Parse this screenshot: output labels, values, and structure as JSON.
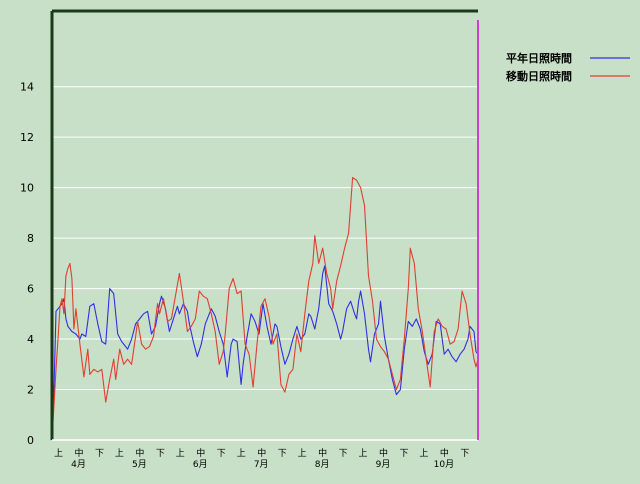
{
  "chart_data": {
    "type": "line",
    "y_ticks": [
      "0",
      "2",
      "4",
      "6",
      "8",
      "10",
      "12",
      "14"
    ],
    "ylim": [
      0,
      17
    ],
    "grid": true,
    "legend_position": "top-right",
    "period_labels": [
      "上",
      "中",
      "下"
    ],
    "month_labels": [
      "4月",
      "5月",
      "6月",
      "7月",
      "8月",
      "9月",
      "10月"
    ],
    "x_count": 214,
    "series": [
      {
        "name": "平年日照時間",
        "color": "#3030e0",
        "points": [
          [
            0,
            0
          ],
          [
            1,
            2
          ],
          [
            2,
            5.1
          ],
          [
            3,
            5.2
          ],
          [
            5,
            5.4
          ],
          [
            6,
            5.6
          ],
          [
            7,
            4.8
          ],
          [
            8,
            4.5
          ],
          [
            10,
            4.3
          ],
          [
            12,
            4.2
          ],
          [
            14,
            4.0
          ],
          [
            15,
            4.2
          ],
          [
            17,
            4.1
          ],
          [
            19,
            5.3
          ],
          [
            21,
            5.4
          ],
          [
            23,
            4.6
          ],
          [
            25,
            3.9
          ],
          [
            27,
            3.8
          ],
          [
            29,
            6.0
          ],
          [
            31,
            5.8
          ],
          [
            33,
            4.2
          ],
          [
            35,
            3.9
          ],
          [
            37,
            3.7
          ],
          [
            38,
            3.6
          ],
          [
            40,
            4.0
          ],
          [
            42,
            4.6
          ],
          [
            44,
            4.8
          ],
          [
            46,
            5.0
          ],
          [
            48,
            5.1
          ],
          [
            50,
            4.2
          ],
          [
            52,
            4.5
          ],
          [
            54,
            5.4
          ],
          [
            55,
            5.7
          ],
          [
            57,
            5.2
          ],
          [
            59,
            4.3
          ],
          [
            61,
            4.8
          ],
          [
            63,
            5.3
          ],
          [
            64,
            5.0
          ],
          [
            66,
            5.4
          ],
          [
            68,
            5.1
          ],
          [
            69,
            4.6
          ],
          [
            71,
            3.9
          ],
          [
            73,
            3.3
          ],
          [
            75,
            3.8
          ],
          [
            77,
            4.6
          ],
          [
            79,
            5.0
          ],
          [
            80,
            5.2
          ],
          [
            82,
            4.9
          ],
          [
            84,
            4.3
          ],
          [
            86,
            3.8
          ],
          [
            88,
            2.5
          ],
          [
            90,
            3.8
          ],
          [
            91,
            4.0
          ],
          [
            93,
            3.9
          ],
          [
            95,
            2.2
          ],
          [
            96,
            3.0
          ],
          [
            98,
            4.1
          ],
          [
            100,
            5.0
          ],
          [
            102,
            4.7
          ],
          [
            104,
            4.2
          ],
          [
            106,
            5.4
          ],
          [
            108,
            4.5
          ],
          [
            110,
            3.8
          ],
          [
            112,
            4.6
          ],
          [
            113,
            4.5
          ],
          [
            115,
            3.7
          ],
          [
            117,
            3.0
          ],
          [
            119,
            3.4
          ],
          [
            121,
            4.0
          ],
          [
            123,
            4.5
          ],
          [
            125,
            4.0
          ],
          [
            127,
            4.2
          ],
          [
            129,
            5.0
          ],
          [
            130,
            4.9
          ],
          [
            132,
            4.4
          ],
          [
            134,
            5.2
          ],
          [
            136,
            6.6
          ],
          [
            137,
            6.9
          ],
          [
            139,
            5.4
          ],
          [
            141,
            5.1
          ],
          [
            143,
            4.6
          ],
          [
            145,
            4.0
          ],
          [
            146,
            4.3
          ],
          [
            148,
            5.2
          ],
          [
            150,
            5.5
          ],
          [
            152,
            5.0
          ],
          [
            153,
            4.8
          ],
          [
            154,
            5.5
          ],
          [
            155,
            5.9
          ],
          [
            157,
            5.0
          ],
          [
            159,
            3.6
          ],
          [
            160,
            3.1
          ],
          [
            162,
            4.2
          ],
          [
            164,
            4.6
          ],
          [
            165,
            5.5
          ],
          [
            167,
            4.1
          ],
          [
            169,
            3.2
          ],
          [
            171,
            2.4
          ],
          [
            173,
            1.8
          ],
          [
            175,
            2.0
          ],
          [
            177,
            3.6
          ],
          [
            179,
            4.7
          ],
          [
            181,
            4.5
          ],
          [
            183,
            4.8
          ],
          [
            185,
            4.4
          ],
          [
            187,
            3.5
          ],
          [
            189,
            3.0
          ],
          [
            191,
            3.4
          ],
          [
            193,
            4.7
          ],
          [
            195,
            4.6
          ],
          [
            197,
            3.4
          ],
          [
            199,
            3.6
          ],
          [
            201,
            3.3
          ],
          [
            203,
            3.1
          ],
          [
            205,
            3.4
          ],
          [
            207,
            3.6
          ],
          [
            209,
            4.0
          ],
          [
            210,
            4.5
          ],
          [
            212,
            4.3
          ],
          [
            213,
            3.5
          ],
          [
            214,
            3.4
          ]
        ]
      },
      {
        "name": "移動日照時間",
        "color": "#e04030",
        "points": [
          [
            0,
            0
          ],
          [
            2,
            2.8
          ],
          [
            3,
            4.0
          ],
          [
            4,
            5.3
          ],
          [
            5,
            5.6
          ],
          [
            6,
            5.0
          ],
          [
            7,
            6.5
          ],
          [
            8,
            6.8
          ],
          [
            9,
            7.0
          ],
          [
            10,
            6.4
          ],
          [
            11,
            4.4
          ],
          [
            12,
            5.2
          ],
          [
            14,
            3.8
          ],
          [
            16,
            2.5
          ],
          [
            18,
            3.6
          ],
          [
            19,
            2.6
          ],
          [
            21,
            2.8
          ],
          [
            23,
            2.7
          ],
          [
            25,
            2.8
          ],
          [
            27,
            1.5
          ],
          [
            29,
            2.4
          ],
          [
            31,
            3.2
          ],
          [
            32,
            2.4
          ],
          [
            34,
            3.6
          ],
          [
            36,
            3.0
          ],
          [
            38,
            3.2
          ],
          [
            40,
            3.0
          ],
          [
            42,
            4.1
          ],
          [
            43,
            4.7
          ],
          [
            45,
            3.8
          ],
          [
            47,
            3.6
          ],
          [
            49,
            3.7
          ],
          [
            51,
            4.1
          ],
          [
            53,
            5.4
          ],
          [
            54,
            5.0
          ],
          [
            56,
            5.6
          ],
          [
            58,
            4.7
          ],
          [
            60,
            4.8
          ],
          [
            62,
            5.7
          ],
          [
            64,
            6.6
          ],
          [
            66,
            5.5
          ],
          [
            68,
            4.3
          ],
          [
            70,
            4.5
          ],
          [
            72,
            4.8
          ],
          [
            74,
            5.9
          ],
          [
            76,
            5.7
          ],
          [
            78,
            5.6
          ],
          [
            80,
            5.0
          ],
          [
            82,
            4.3
          ],
          [
            84,
            3.0
          ],
          [
            86,
            3.5
          ],
          [
            87,
            4.2
          ],
          [
            89,
            6.0
          ],
          [
            91,
            6.4
          ],
          [
            93,
            5.8
          ],
          [
            95,
            5.9
          ],
          [
            97,
            3.8
          ],
          [
            99,
            3.4
          ],
          [
            101,
            2.1
          ],
          [
            103,
            3.8
          ],
          [
            105,
            5.3
          ],
          [
            107,
            5.6
          ],
          [
            109,
            4.9
          ],
          [
            111,
            3.8
          ],
          [
            113,
            4.2
          ],
          [
            115,
            2.2
          ],
          [
            117,
            1.9
          ],
          [
            119,
            2.6
          ],
          [
            121,
            2.8
          ],
          [
            123,
            4.2
          ],
          [
            125,
            3.5
          ],
          [
            127,
            5.0
          ],
          [
            129,
            6.3
          ],
          [
            131,
            7.0
          ],
          [
            132,
            8.1
          ],
          [
            134,
            7.0
          ],
          [
            136,
            7.6
          ],
          [
            138,
            6.6
          ],
          [
            140,
            6.0
          ],
          [
            141,
            5.2
          ],
          [
            143,
            6.3
          ],
          [
            145,
            6.9
          ],
          [
            147,
            7.6
          ],
          [
            149,
            8.2
          ],
          [
            151,
            10.4
          ],
          [
            153,
            10.3
          ],
          [
            155,
            10.0
          ],
          [
            157,
            9.3
          ],
          [
            159,
            6.5
          ],
          [
            161,
            5.5
          ],
          [
            163,
            4.0
          ],
          [
            165,
            3.7
          ],
          [
            167,
            3.5
          ],
          [
            169,
            3.2
          ],
          [
            171,
            2.6
          ],
          [
            173,
            2.0
          ],
          [
            175,
            2.4
          ],
          [
            177,
            4.0
          ],
          [
            179,
            6.0
          ],
          [
            180,
            7.6
          ],
          [
            182,
            7.0
          ],
          [
            184,
            5.2
          ],
          [
            186,
            4.3
          ],
          [
            188,
            3.2
          ],
          [
            190,
            2.1
          ],
          [
            192,
            4.3
          ],
          [
            194,
            4.8
          ],
          [
            196,
            4.5
          ],
          [
            198,
            4.4
          ],
          [
            200,
            3.8
          ],
          [
            202,
            3.9
          ],
          [
            204,
            4.4
          ],
          [
            206,
            5.9
          ],
          [
            208,
            5.4
          ],
          [
            210,
            4.2
          ],
          [
            212,
            3.2
          ],
          [
            213,
            2.9
          ],
          [
            214,
            3.2
          ]
        ]
      }
    ]
  }
}
